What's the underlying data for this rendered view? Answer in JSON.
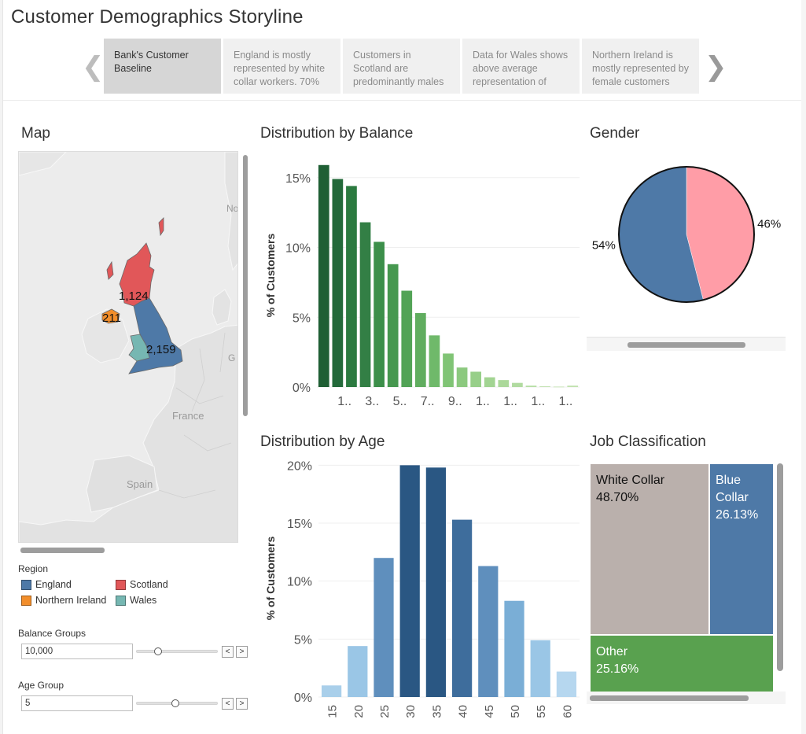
{
  "app_title": "Customer Demographics Storyline",
  "story": {
    "prev_arrow": "❮",
    "next_arrow": "❯",
    "points": [
      {
        "text": "Bank's Customer Baseline",
        "active": true
      },
      {
        "text": "England is mostly represented by white collar workers. 70%",
        "active": false
      },
      {
        "text": "Customers in Scotland are predominantly males",
        "active": false
      },
      {
        "text": "Data for Wales shows above average representation of",
        "active": false
      },
      {
        "text": "Northern Ireland is mostly represented by female customers",
        "active": false
      }
    ]
  },
  "map": {
    "title": "Map",
    "places": [
      "No",
      "G",
      "France",
      "Spain"
    ],
    "regions": [
      {
        "name": "England",
        "value_label": "2,159",
        "color": "#4e79a7"
      },
      {
        "name": "Scotland",
        "value_label": "1,124",
        "color": "#e15759"
      },
      {
        "name": "Northern Ireland",
        "value_label": "211",
        "color": "#f28e2b"
      },
      {
        "name": "Wales",
        "value_label": "",
        "color": "#76b7b2"
      }
    ]
  },
  "legend": {
    "title": "Region",
    "items": [
      {
        "label": "England",
        "color": "#4e79a7"
      },
      {
        "label": "Scotland",
        "color": "#e15759"
      },
      {
        "label": "Northern Ireland",
        "color": "#f28e2b"
      },
      {
        "label": "Wales",
        "color": "#76b7b2"
      }
    ]
  },
  "params": {
    "balance": {
      "label": "Balance Groups",
      "value": "10,000",
      "level": 0.27
    },
    "age": {
      "label": "Age Group",
      "value": "5",
      "level": 0.48
    },
    "prev_btn": "<",
    "next_btn": ">"
  },
  "chart_data": [
    {
      "type": "bar",
      "title": "Distribution by Balance",
      "ylabel": "% of Customers",
      "ylim": [
        0,
        16
      ],
      "yticks": [
        "0%",
        "5%",
        "10%",
        "15%"
      ],
      "categories": [
        "",
        "1..",
        "",
        "3..",
        "",
        "5..",
        "",
        "7..",
        "",
        "9..",
        "",
        "1..",
        "",
        "1..",
        "",
        "1..",
        "",
        "1..",
        ""
      ],
      "values": [
        15.9,
        14.9,
        14.4,
        11.8,
        10.4,
        8.8,
        6.9,
        5.3,
        3.7,
        2.4,
        1.4,
        1.1,
        0.7,
        0.5,
        0.3,
        0.1,
        0.05,
        0.03,
        0.1
      ],
      "colors": [
        "#1f5f34",
        "#23693a",
        "#2b7a40",
        "#337f45",
        "#3c8f4a",
        "#46984f",
        "#52a356",
        "#60ad5f",
        "#6fb96a",
        "#80c475",
        "#8cc97f",
        "#97cf89",
        "#a2d492",
        "#abd89a",
        "#b1dba0",
        "#b6dea4",
        "#badfa8",
        "#bde0ab",
        "#c0e2ae"
      ]
    },
    {
      "type": "pie",
      "title": "Gender",
      "slices": [
        {
          "label": "46%",
          "value": 46,
          "color": "#ff9da7"
        },
        {
          "label": "54%",
          "value": 54,
          "color": "#4e79a7"
        }
      ]
    },
    {
      "type": "bar",
      "title": "Distribution by Age",
      "ylabel": "% of Customers",
      "ylim": [
        0,
        20.5
      ],
      "yticks": [
        "0%",
        "5%",
        "10%",
        "15%",
        "20%"
      ],
      "categories": [
        "15",
        "20",
        "25",
        "30",
        "35",
        "40",
        "45",
        "50",
        "55",
        "60"
      ],
      "values": [
        1.0,
        4.4,
        12.0,
        20.0,
        19.8,
        15.3,
        11.3,
        8.3,
        4.9,
        2.2
      ],
      "colors": [
        "#a9cfea",
        "#9ac6e6",
        "#5f8fbd",
        "#2a5783",
        "#2a5783",
        "#3e6d9c",
        "#5f8fbd",
        "#7aaed6",
        "#9ac6e6",
        "#b6d7ef"
      ]
    },
    {
      "type": "treemap",
      "title": "Job Classification",
      "items": [
        {
          "name": "White Collar",
          "value_label": "48.70%",
          "value": 48.7,
          "color": "#bab0ac"
        },
        {
          "name": "Blue Collar",
          "value_label": "26.13%",
          "value": 26.13,
          "color": "#4e79a7"
        },
        {
          "name": "Other",
          "value_label": "25.16%",
          "value": 25.16,
          "color": "#59a14f"
        }
      ]
    }
  ]
}
